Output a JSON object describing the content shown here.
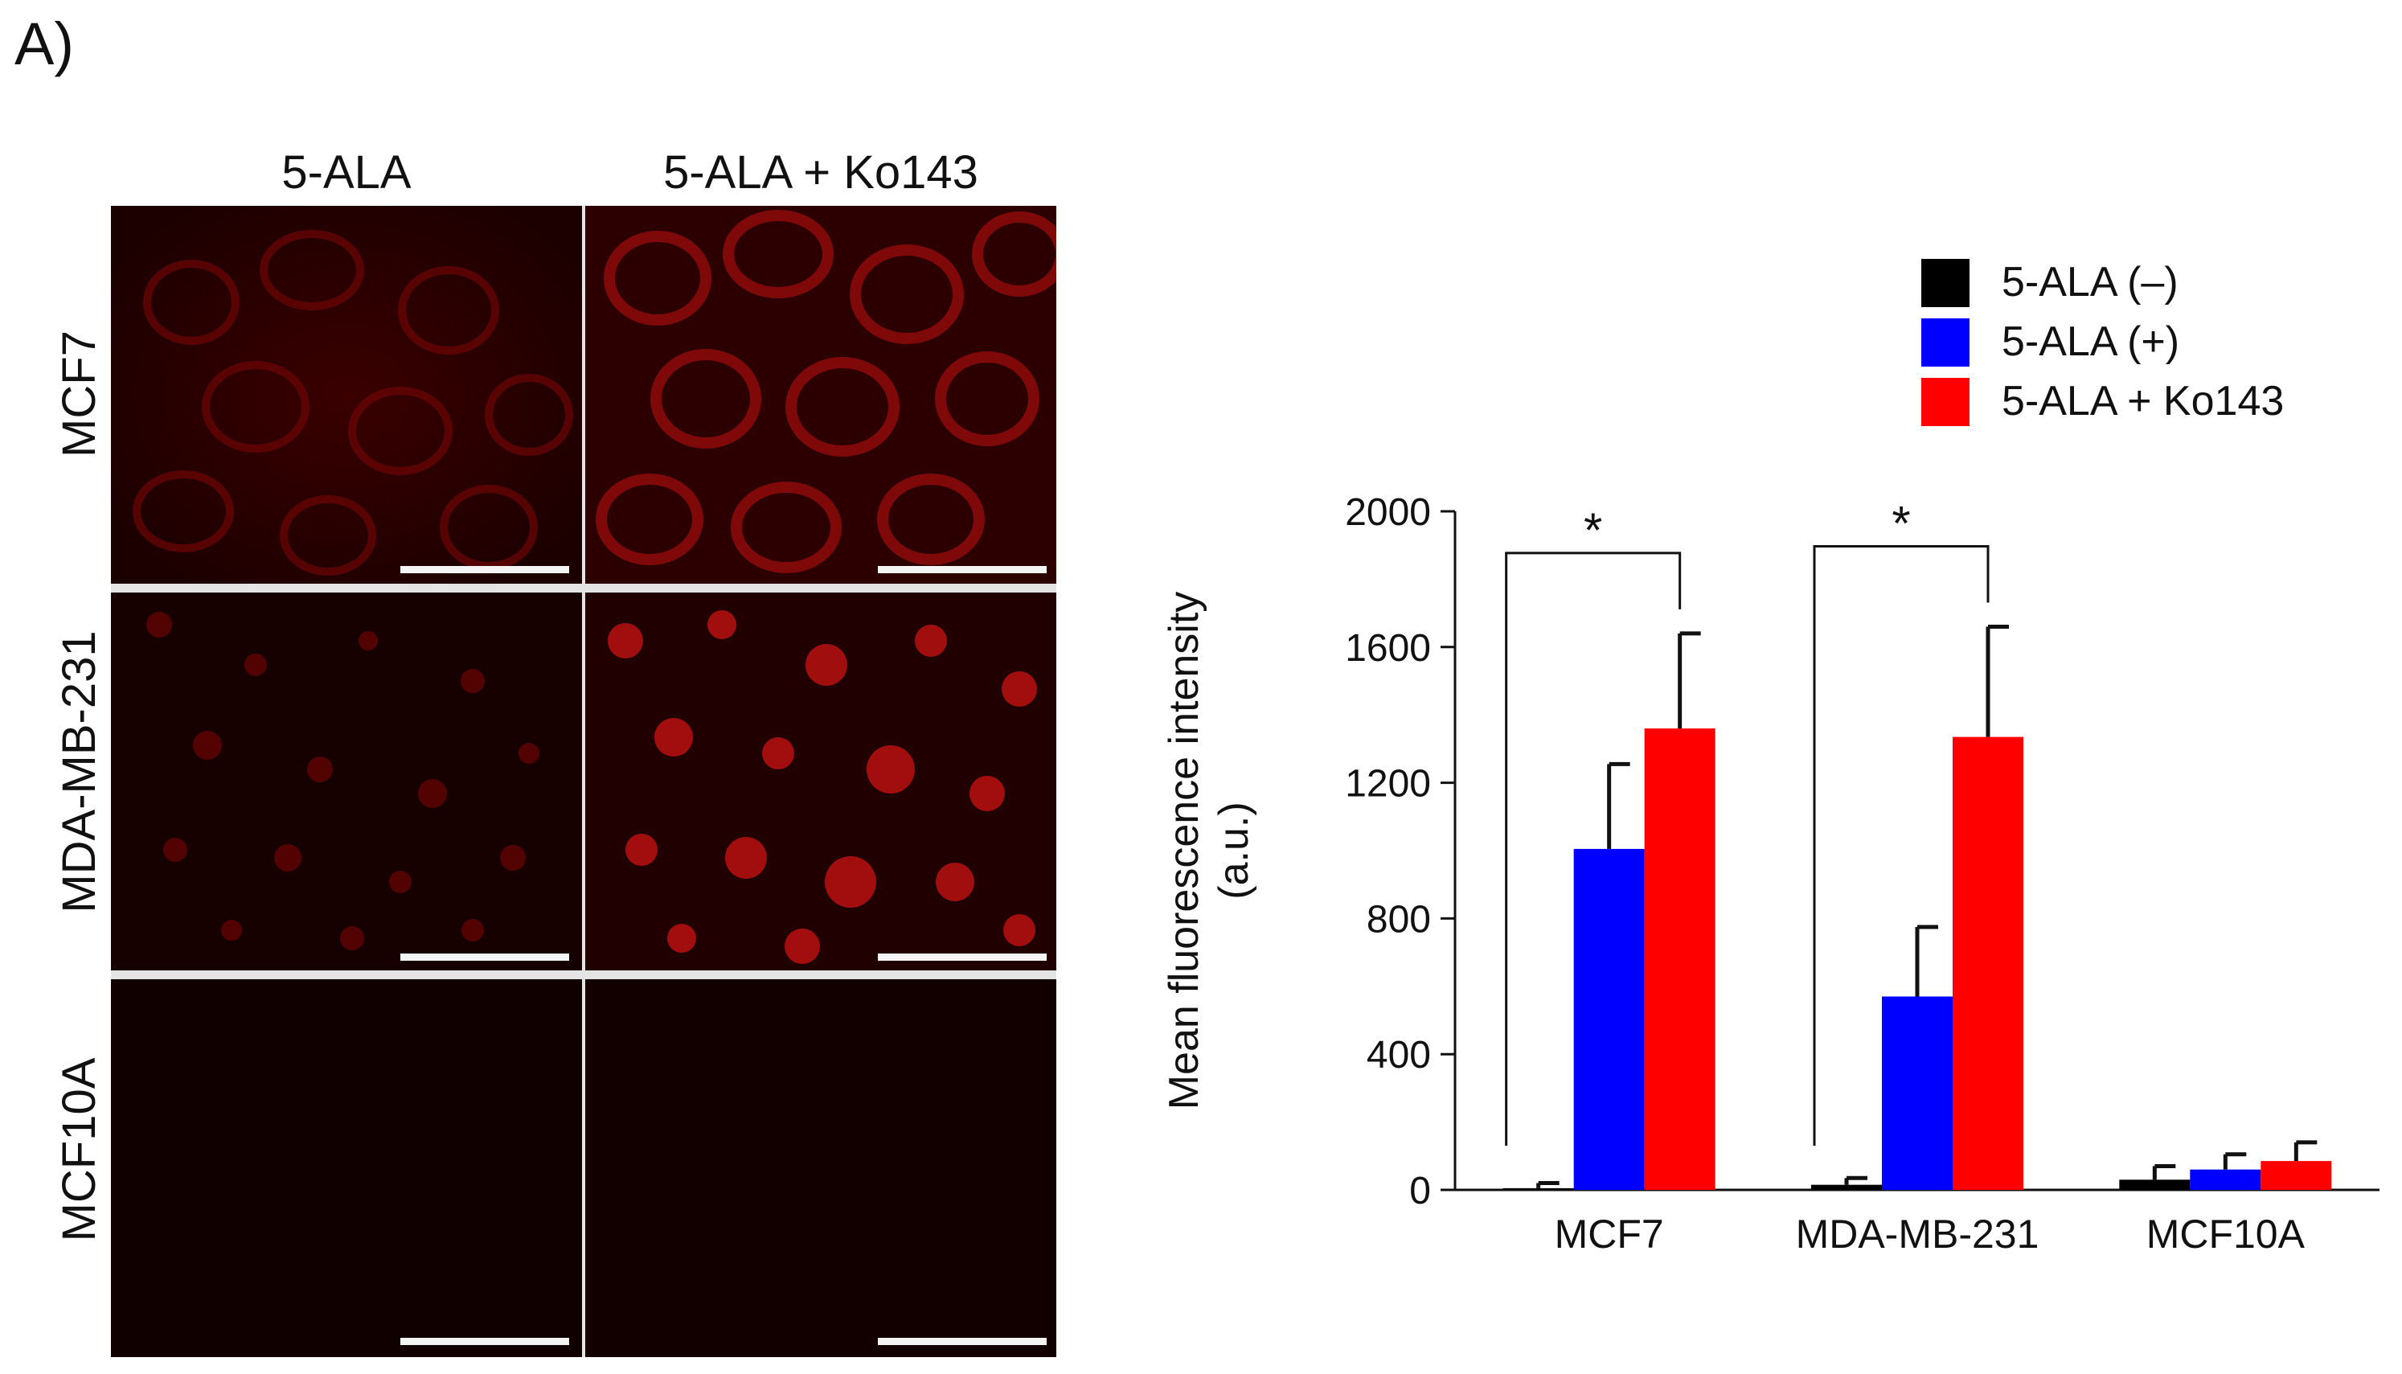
{
  "panel_label": "A)",
  "micrographs": {
    "columns": [
      "5-ALA",
      "5-ALA + Ko143"
    ],
    "rows": [
      "MCF7",
      "MDA-MB-231",
      "MCF10A"
    ]
  },
  "chart_data": {
    "type": "bar",
    "categories": [
      "MCF7",
      "MDA-MB-231",
      "MCF10A"
    ],
    "series": [
      {
        "name": "5-ALA (–)",
        "color": "#000000",
        "values": [
          5,
          15,
          30
        ],
        "errors": [
          15,
          20,
          40
        ]
      },
      {
        "name": "5-ALA (+)",
        "color": "#0000ff",
        "values": [
          1005,
          570,
          60
        ],
        "errors": [
          250,
          205,
          45
        ]
      },
      {
        "name": "5-ALA + Ko143",
        "color": "#ff0000",
        "values": [
          1360,
          1335,
          85
        ],
        "errors": [
          280,
          325,
          55
        ]
      }
    ],
    "ylabel": "Mean fluorescence intensity",
    "ylabel_unit": "(a.u.)",
    "ylim": [
      0,
      2000
    ],
    "yticks": [
      0,
      400,
      800,
      1200,
      1600,
      2000
    ],
    "legend_position": "top-right",
    "grid": false,
    "annotations": [
      {
        "label": "*",
        "category": "MCF7",
        "from_series": 0,
        "to_series": 2
      },
      {
        "label": "*",
        "category": "MDA-MB-231",
        "from_series": 0,
        "to_series": 2
      }
    ]
  }
}
